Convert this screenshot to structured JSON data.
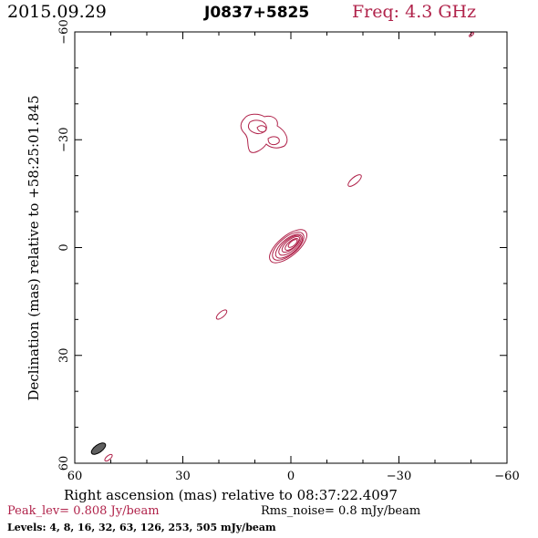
{
  "header": {
    "date": "2015.09.29",
    "source": "J0837+5825",
    "frequency": "Freq: 4.3 GHz"
  },
  "axes": {
    "xlabel": "Right ascension (mas) relative to 08:37:22.4097",
    "ylabel": "Declination (mas) relative to +58:25:01.845",
    "xlim": [
      60,
      -60
    ],
    "ylim": [
      -60,
      60
    ],
    "x_ticks": [
      "60",
      "30",
      "0",
      "−30",
      "−60"
    ],
    "y_ticks": [
      "60",
      "30",
      "0",
      "−30",
      "−60"
    ]
  },
  "footer": {
    "peak": "Peak_lev=  0.808 Jy/beam",
    "rms": "Rms_noise=  0.8 mJy/beam",
    "levels": "Levels:   4,   8,  16,  32,  63, 126, 253, 505 mJy/beam"
  },
  "chart_data": {
    "type": "contour",
    "contour_color": "#b0224a",
    "beam_color": "#606060",
    "beam": {
      "x": 55,
      "y": -56,
      "major": 4.6,
      "minor": 2.2,
      "pa_deg": 35
    }
  }
}
